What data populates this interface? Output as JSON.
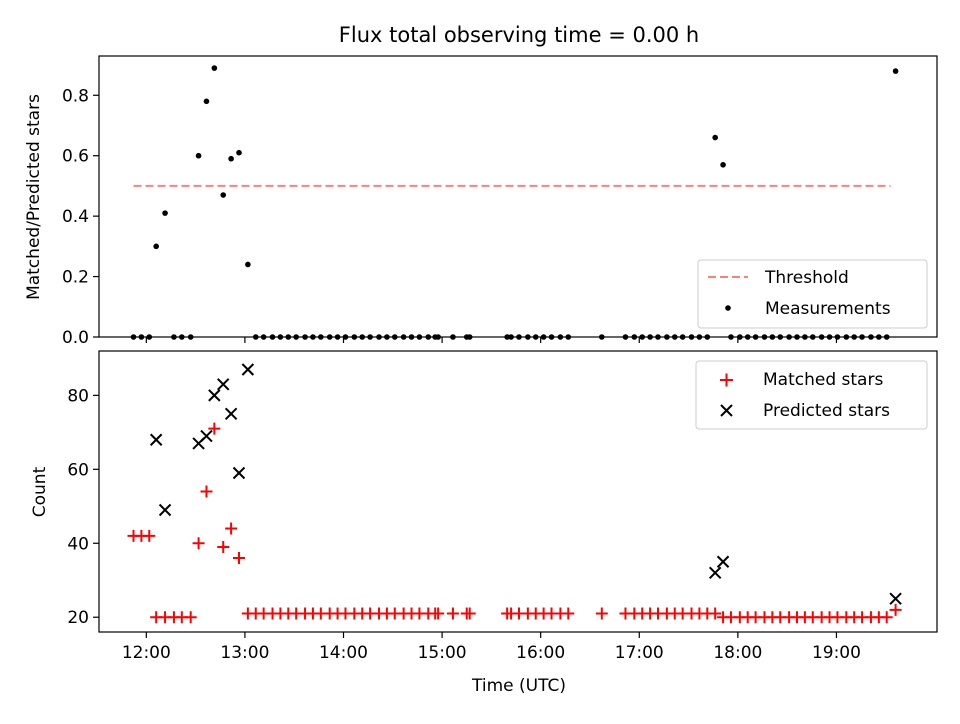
{
  "chart_data": [
    {
      "type": "scatter",
      "title": "Flux total observing time = 0.00 h",
      "xlabel": "",
      "ylabel": "Matched/Predicted stars",
      "xlim": [
        11.52,
        20.02
      ],
      "ylim": [
        0.0,
        0.93
      ],
      "yticks": [
        0.0,
        0.2,
        0.4,
        0.6,
        0.8
      ],
      "ytick_labels": [
        "0.0",
        "0.2",
        "0.4",
        "0.6",
        "0.8"
      ],
      "legend_position": "lower-right",
      "series": [
        {
          "name": "Threshold",
          "kind": "dashed-line",
          "color": "#ff7f7f",
          "x": [
            11.87,
            19.55
          ],
          "y": [
            0.5,
            0.5
          ]
        },
        {
          "name": "Measurements",
          "kind": "dot",
          "color": "#000000",
          "x": [
            11.87,
            11.95,
            12.03,
            12.1,
            12.19,
            12.28,
            12.36,
            12.45,
            12.53,
            12.61,
            12.69,
            12.78,
            12.86,
            12.94,
            13.03,
            13.11,
            13.19,
            13.28,
            13.36,
            13.44,
            13.52,
            13.61,
            13.69,
            13.77,
            13.86,
            13.94,
            14.02,
            14.11,
            14.19,
            14.27,
            14.36,
            14.44,
            14.52,
            14.61,
            14.69,
            14.77,
            14.86,
            14.93,
            14.96,
            15.11,
            15.25,
            15.28,
            15.66,
            15.7,
            15.78,
            15.87,
            15.95,
            16.03,
            16.11,
            16.2,
            16.28,
            16.62,
            16.86,
            16.95,
            17.03,
            17.11,
            17.19,
            17.28,
            17.36,
            17.44,
            17.53,
            17.61,
            17.69,
            17.77,
            17.85,
            17.93,
            18.02,
            18.1,
            18.18,
            18.27,
            18.35,
            18.43,
            18.52,
            18.6,
            18.68,
            18.76,
            18.85,
            18.93,
            19.01,
            19.1,
            19.18,
            19.26,
            19.35,
            19.43,
            19.51,
            19.6
          ],
          "y": [
            0.0,
            0.0,
            0.0,
            0.3,
            0.41,
            0.0,
            0.0,
            0.0,
            0.6,
            0.78,
            0.89,
            0.47,
            0.59,
            0.61,
            0.24,
            0.0,
            0.0,
            0.0,
            0.0,
            0.0,
            0.0,
            0.0,
            0.0,
            0.0,
            0.0,
            0.0,
            0.0,
            0.0,
            0.0,
            0.0,
            0.0,
            0.0,
            0.0,
            0.0,
            0.0,
            0.0,
            0.0,
            0.0,
            0.0,
            0.0,
            0.0,
            0.0,
            0.0,
            0.0,
            0.0,
            0.0,
            0.0,
            0.0,
            0.0,
            0.0,
            0.0,
            0.0,
            0.0,
            0.0,
            0.0,
            0.0,
            0.0,
            0.0,
            0.0,
            0.0,
            0.0,
            0.0,
            0.0,
            0.66,
            0.57,
            0.0,
            0.0,
            0.0,
            0.0,
            0.0,
            0.0,
            0.0,
            0.0,
            0.0,
            0.0,
            0.0,
            0.0,
            0.0,
            0.0,
            0.0,
            0.0,
            0.0,
            0.0,
            0.0,
            0.0,
            0.88
          ]
        }
      ]
    },
    {
      "type": "scatter",
      "title": "",
      "xlabel": "Time (UTC)",
      "ylabel": "Count",
      "xlim": [
        11.52,
        20.02
      ],
      "ylim": [
        16.0,
        92.0
      ],
      "yticks": [
        20,
        40,
        60,
        80
      ],
      "ytick_labels": [
        "20",
        "40",
        "60",
        "80"
      ],
      "xticks": [
        12,
        13,
        14,
        15,
        16,
        17,
        18,
        19
      ],
      "xtick_labels": [
        "12:00",
        "13:00",
        "14:00",
        "15:00",
        "16:00",
        "17:00",
        "18:00",
        "19:00"
      ],
      "legend_position": "upper-right",
      "series": [
        {
          "name": "Matched stars",
          "kind": "plus",
          "color": "#ff0000",
          "x": [
            11.87,
            11.95,
            12.03,
            12.1,
            12.19,
            12.28,
            12.36,
            12.45,
            12.53,
            12.61,
            12.69,
            12.78,
            12.86,
            12.94,
            13.03,
            13.11,
            13.19,
            13.28,
            13.36,
            13.44,
            13.52,
            13.61,
            13.69,
            13.77,
            13.86,
            13.94,
            14.02,
            14.11,
            14.19,
            14.27,
            14.36,
            14.44,
            14.52,
            14.61,
            14.69,
            14.77,
            14.86,
            14.93,
            14.96,
            15.11,
            15.25,
            15.28,
            15.66,
            15.7,
            15.78,
            15.87,
            15.95,
            16.03,
            16.11,
            16.2,
            16.28,
            16.62,
            16.86,
            16.95,
            17.03,
            17.11,
            17.19,
            17.28,
            17.36,
            17.44,
            17.53,
            17.61,
            17.69,
            17.77,
            17.85,
            17.93,
            18.02,
            18.1,
            18.18,
            18.27,
            18.35,
            18.43,
            18.52,
            18.6,
            18.68,
            18.76,
            18.85,
            18.93,
            19.01,
            19.1,
            19.18,
            19.26,
            19.35,
            19.43,
            19.51,
            19.6
          ],
          "y": [
            42,
            42,
            42,
            20,
            20,
            20,
            20,
            20,
            40,
            54,
            71,
            39,
            44,
            36,
            21,
            21,
            21,
            21,
            21,
            21,
            21,
            21,
            21,
            21,
            21,
            21,
            21,
            21,
            21,
            21,
            21,
            21,
            21,
            21,
            21,
            21,
            21,
            21,
            21,
            21,
            21,
            21,
            21,
            21,
            21,
            21,
            21,
            21,
            21,
            21,
            21,
            21,
            21,
            21,
            21,
            21,
            21,
            21,
            21,
            21,
            21,
            21,
            21,
            21,
            20,
            20,
            20,
            20,
            20,
            20,
            20,
            20,
            20,
            20,
            20,
            20,
            20,
            20,
            20,
            20,
            20,
            20,
            20,
            20,
            20,
            22
          ]
        },
        {
          "name": "Predicted stars",
          "kind": "cross",
          "color": "#000000",
          "x": [
            12.1,
            12.19,
            12.53,
            12.61,
            12.69,
            12.78,
            12.86,
            12.94,
            13.03,
            17.77,
            17.85,
            19.6
          ],
          "y": [
            68,
            49,
            67,
            69,
            80,
            83,
            75,
            59,
            87,
            32,
            35,
            25
          ]
        }
      ]
    }
  ]
}
